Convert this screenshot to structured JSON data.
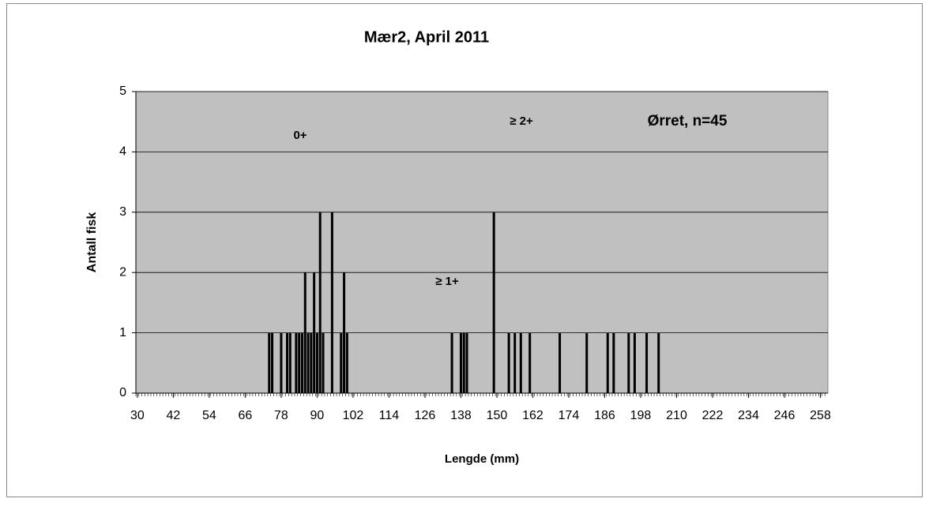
{
  "chart_data": {
    "type": "bar",
    "title": "Mær2, April 2011",
    "x_label": "Lengde (mm)",
    "y_label": "Antall fisk",
    "annotations": [
      "0+",
      "≥ 1+",
      "≥ 2+",
      "Ørret, n=45"
    ],
    "x": [
      74,
      75,
      78,
      80,
      81,
      83,
      84,
      85,
      86,
      87,
      88,
      89,
      90,
      91,
      92,
      95,
      98,
      99,
      100,
      135,
      138,
      139,
      140,
      149,
      154,
      156,
      158,
      161,
      171,
      180,
      187,
      189,
      194,
      196,
      200,
      204
    ],
    "values": [
      1,
      1,
      1,
      1,
      1,
      1,
      1,
      1,
      2,
      1,
      1,
      2,
      1,
      3,
      1,
      3,
      1,
      2,
      1,
      1,
      1,
      1,
      1,
      3,
      1,
      1,
      1,
      1,
      1,
      1,
      1,
      1,
      1,
      1,
      1,
      1
    ],
    "color": "#000000",
    "plot_background": "#c0c0c0",
    "xlim": [
      29.5,
      260.5
    ],
    "xticks": [
      30,
      42,
      54,
      66,
      78,
      90,
      102,
      114,
      126,
      138,
      150,
      162,
      174,
      186,
      198,
      210,
      222,
      234,
      246,
      258
    ],
    "ylim": [
      0,
      5
    ],
    "yticks": [
      0,
      1,
      2,
      3,
      4,
      5
    ],
    "grid": true
  }
}
